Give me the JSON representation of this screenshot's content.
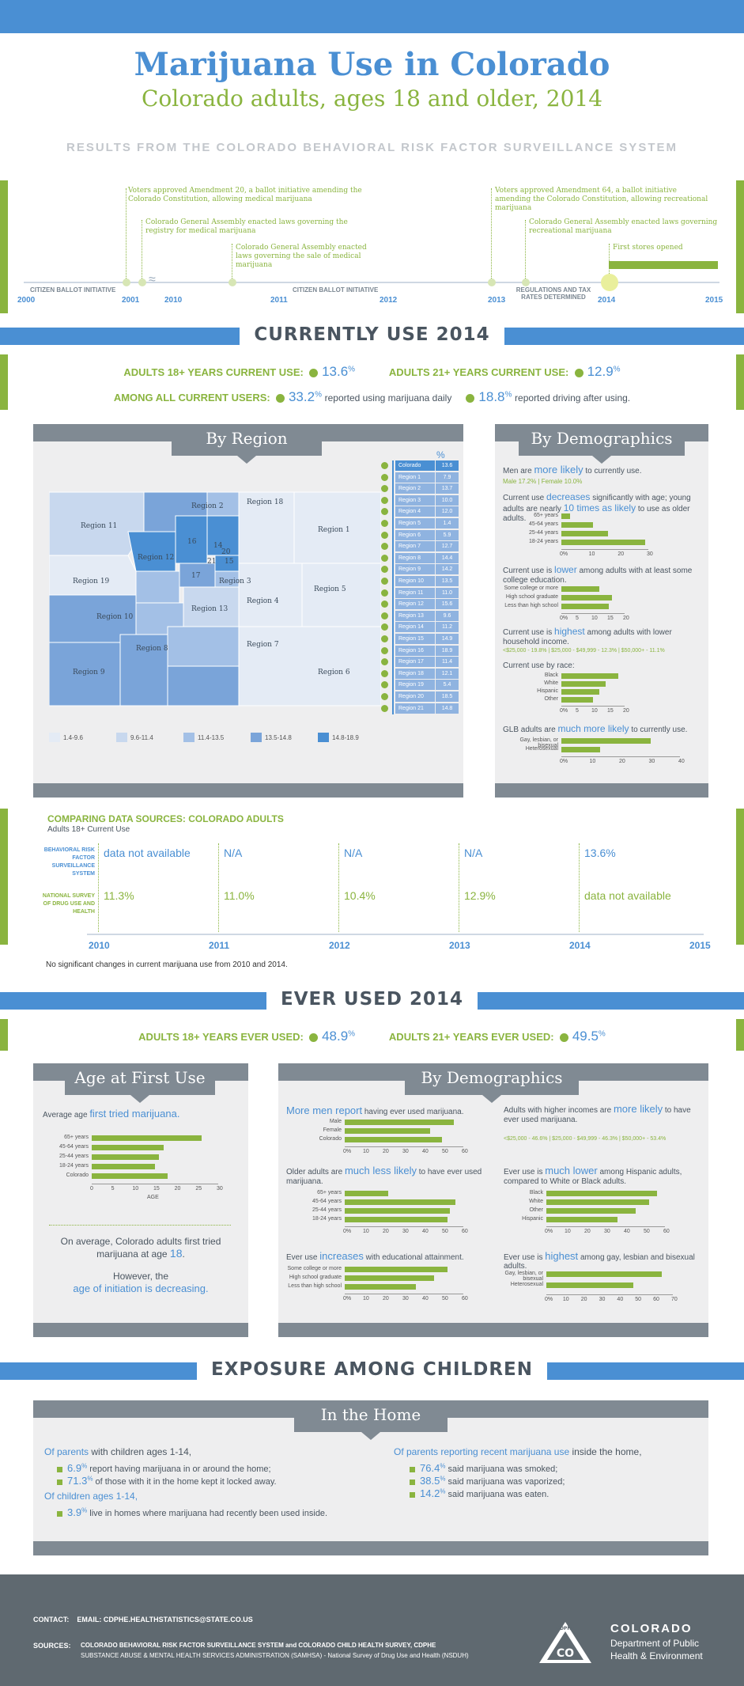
{
  "header": {
    "title": "Marijuana Use in Colorado",
    "subtitle": "Colorado adults, ages 18 and older, 2014",
    "tagline": "RESULTS FROM THE COLORADO BEHAVIORAL RISK FACTOR SURVEILLANCE SYSTEM"
  },
  "timeline": {
    "years": [
      "2000",
      "2001",
      "2010",
      "2011",
      "2012",
      "2013",
      "2014",
      "2015"
    ],
    "labels": [
      "CITIZEN BALLOT INITIATIVE",
      "CITIZEN BALLOT INITIATIVE",
      "REGULATIONS AND TAX RATES DETERMINED"
    ],
    "events": [
      "Voters approved Amendment 20, a ballot initiative amending the Colorado Constitution, allowing medical marijuana",
      "Colorado General Assembly enacted laws governing the registry for medical marijuana",
      "Colorado General Assembly enacted laws governing the sale of medical marijuana",
      "Voters approved Amendment 64, a ballot initiative amending the Colorado Constitution, allowing recreational marijuana",
      "Colorado General Assembly enacted laws governing recreational marijuana",
      "First stores opened"
    ]
  },
  "current": {
    "section_title": "CURRENTLY USE 2014",
    "adults18_label": "ADULTS 18+ YEARS CURRENT USE:",
    "adults18_value": "13.6",
    "adults21_label": "ADULTS 21+ YEARS CURRENT USE:",
    "adults21_value": "12.9",
    "all_users_label": "AMONG ALL CURRENT USERS:",
    "daily_value": "33.2",
    "daily_text": "reported using marijuana daily",
    "driving_value": "18.8",
    "driving_text": "reported driving after using.",
    "pct": "%"
  },
  "by_region": {
    "tab": "By Region",
    "table_header": "%",
    "rows": [
      {
        "name": "Colorado",
        "value": "13.6"
      },
      {
        "name": "Region 1",
        "value": "7.9"
      },
      {
        "name": "Region 2",
        "value": "13.7"
      },
      {
        "name": "Region 3",
        "value": "10.0"
      },
      {
        "name": "Region 4",
        "value": "12.0"
      },
      {
        "name": "Region 5",
        "value": "1.4"
      },
      {
        "name": "Region 6",
        "value": "5.9"
      },
      {
        "name": "Region 7",
        "value": "12.7"
      },
      {
        "name": "Region 8",
        "value": "14.4"
      },
      {
        "name": "Region 9",
        "value": "14.2"
      },
      {
        "name": "Region 10",
        "value": "13.5"
      },
      {
        "name": "Region 11",
        "value": "11.0"
      },
      {
        "name": "Region 12",
        "value": "15.6"
      },
      {
        "name": "Region 13",
        "value": "9.6"
      },
      {
        "name": "Region 14",
        "value": "11.2"
      },
      {
        "name": "Region 15",
        "value": "14.9"
      },
      {
        "name": "Region 16",
        "value": "18.9"
      },
      {
        "name": "Region 17",
        "value": "11.4"
      },
      {
        "name": "Region 18",
        "value": "12.1"
      },
      {
        "name": "Region 19",
        "value": "5.4"
      },
      {
        "name": "Region 20",
        "value": "18.5"
      },
      {
        "name": "Region 21",
        "value": "14.8"
      }
    ],
    "legend": [
      "1.4-9.6",
      "9.6-11.4",
      "11.4-13.5",
      "13.5-14.8",
      "14.8-18.9"
    ],
    "legend_colors": [
      "#e4ebf5",
      "#c8d8ee",
      "#a3c0e6",
      "#7aa4d9",
      "#4a8fd3"
    ],
    "map_labels": [
      "Region 1",
      "Region 2",
      "Region 3",
      "Region 4",
      "Region 5",
      "Region 6",
      "Region 7",
      "Region 8",
      "Region 9",
      "Region 10",
      "Region 11",
      "Region 12",
      "Region 13",
      "Region 14",
      "Region 15",
      "Region 16",
      "Region 17",
      "Region 18",
      "Region 19",
      "Region 20",
      "Region 21"
    ]
  },
  "by_demo_current": {
    "tab": "By Demographics",
    "men_pre": "Men are",
    "men_hl": "more likely",
    "men_post": "to currently use.",
    "men_vals": "Male 17.2%  |  Female 10.0%",
    "age_pre": "Current use",
    "age_hl": "decreases",
    "age_post": "significantly with age; young adults are nearly",
    "age_hl2": "10 times as likely",
    "age_post2": "to use as older adults.",
    "age_cats": [
      "65+ years",
      "45-64 years",
      "25-44 years",
      "18-24 years"
    ],
    "age_vals": [
      3,
      11,
      16,
      29
    ],
    "age_ticks": [
      "0%",
      "10",
      "20",
      "30"
    ],
    "edu_pre": "Current use is",
    "edu_hl": "lower",
    "edu_post": "among adults with at least some college education.",
    "edu_cats": [
      "Some college or more",
      "High school graduate",
      "Less than high school"
    ],
    "edu_vals": [
      12,
      16,
      15
    ],
    "edu_ticks": [
      "0%",
      "5",
      "10",
      "15",
      "20"
    ],
    "inc_pre": "Current use is",
    "inc_hl": "highest",
    "inc_post": "among adults with lower household income.",
    "inc_vals": "<$25,000 - 19.8%  |  $25,000 - $49,999 - 12.3%  |  $50,000+ - 11.1%",
    "race_title": "Current use by race:",
    "race_cats": [
      "Black",
      "White",
      "Hispanic",
      "Other"
    ],
    "race_vals": [
      18,
      14,
      12,
      10
    ],
    "race_ticks": [
      "0%",
      "5",
      "10",
      "15",
      "20"
    ],
    "glb_pre": "GLB adults are",
    "glb_hl": "much more likely",
    "glb_post": "to currently use.",
    "glb_cats": [
      "Gay, lesbian, or bisexual",
      "Heterosexual"
    ],
    "glb_vals": [
      30,
      13
    ],
    "glb_ticks": [
      "0%",
      "10",
      "20",
      "30",
      "40"
    ]
  },
  "comparing": {
    "title": "COMPARING DATA SOURCES: COLORADO ADULTS",
    "subtitle": "Adults 18+ Current Use",
    "row1_label": "BEHAVIORAL RISK FACTOR SURVEILLANCE SYSTEM",
    "row2_label": "NATIONAL SURVEY OF DRUG USE AND HEALTH",
    "row1": [
      "data not available",
      "N/A",
      "N/A",
      "N/A",
      "13.6%"
    ],
    "row2": [
      "11.3%",
      "11.0%",
      "10.4%",
      "12.9%",
      "data not available"
    ],
    "years": [
      "2010",
      "2011",
      "2012",
      "2013",
      "2014",
      "2015"
    ],
    "note": "No significant changes in current marijuana use from 2010 and 2014."
  },
  "ever": {
    "section_title": "EVER USED 2014",
    "adults18_label": "ADULTS 18+ YEARS EVER USED:",
    "adults18_value": "48.9",
    "adults21_label": "ADULTS 21+ YEARS EVER USED:",
    "adults21_value": "49.5",
    "pct": "%"
  },
  "age_first": {
    "tab": "Age at First Use",
    "intro_pre": "Average age",
    "intro_hl": "first tried marijuana.",
    "cats": [
      "65+ years",
      "45-64 years",
      "25-44 years",
      "18-24 years",
      "Colorado"
    ],
    "vals": [
      26,
      17,
      16,
      15,
      18
    ],
    "ticks": [
      "0",
      "5",
      "10",
      "15",
      "20",
      "25",
      "30"
    ],
    "axis": "AGE",
    "avg_text_pre": "On average, Colorado adults first tried marijuana at age",
    "avg_age": "18",
    "however": "However, the",
    "decreasing": "age of initiation is decreasing."
  },
  "demo_ever": {
    "tab": "By Demographics",
    "men_hl": "More men report",
    "men_post": "having ever used marijuana.",
    "sex_cats": [
      "Male",
      "Female",
      "Colorado"
    ],
    "sex_vals": [
      55,
      43,
      49
    ],
    "ticks60": [
      "0%",
      "10",
      "20",
      "30",
      "40",
      "50",
      "60"
    ],
    "older_pre": "Older adults are",
    "older_hl": "much less likely",
    "older_post": "to have ever used marijuana.",
    "age_cats": [
      "65+ years",
      "45-64 years",
      "25-44 years",
      "18-24 years"
    ],
    "age_vals": [
      22,
      56,
      53,
      52
    ],
    "edu_pre": "Ever use",
    "edu_hl": "increases",
    "edu_post": "with educational attainment.",
    "edu_cats": [
      "Some college or more",
      "High school graduate",
      "Less than high school"
    ],
    "edu_vals": [
      52,
      45,
      36
    ],
    "inc_pre": "Adults with higher incomes are",
    "inc_hl": "more likely",
    "inc_post": "to have ever used marijuana.",
    "inc_vals": "<$25,000 - 46.6%  |  $25,000 - $49,999 - 46.3%  |  $50,000+ - 53.4%",
    "his_pre": "Ever use is",
    "his_hl": "much lower",
    "his_post": "among Hispanic adults, compared to White or Black adults.",
    "race_cats": [
      "Black",
      "White",
      "Other",
      "Hispanic"
    ],
    "race_vals": [
      56,
      52,
      45,
      36
    ],
    "glb_pre": "Ever use is",
    "glb_hl": "highest",
    "glb_post": "among gay, lesbian and bisexual adults.",
    "glb_cats": [
      "Gay, lesbian, or bisexual",
      "Heterosexual"
    ],
    "glb_vals": [
      64,
      48
    ],
    "ticks70": [
      "0%",
      "10",
      "20",
      "30",
      "40",
      "50",
      "60",
      "70"
    ]
  },
  "exposure": {
    "section_title": "EXPOSURE AMONG CHILDREN",
    "tab": "In the Home",
    "parents_hl": "Of parents",
    "parents_post": "with children ages 1-14,",
    "p1_val": "6.9",
    "p1_text": "report having marijuana in or around the home;",
    "p2_val": "71.3",
    "p2_text": "of those with it in the home kept it locked away.",
    "children_hl": "Of children ages 1-14,",
    "c1_val": "3.9",
    "c1_text": "live in homes where marijuana had recently been used inside.",
    "recent_hl": "Of parents reporting recent marijuana use",
    "recent_post": "inside the home,",
    "r1_val": "76.4",
    "r1_text": "said marijuana was smoked;",
    "r2_val": "38.5",
    "r2_text": "said marijuana was vaporized;",
    "r3_val": "14.2",
    "r3_text": "said marijuana was eaten.",
    "pct": "%"
  },
  "footer": {
    "contact_label": "CONTACT:",
    "contact_text": "EMAIL: CDPHE.HEALTHSTATISTICS@STATE.CO.US",
    "sources_label": "SOURCES:",
    "sources_line1": "COLORADO BEHAVIORAL RISK FACTOR SURVEILLANCE SYSTEM and COLORADO CHILD HEALTH SURVEY, CDPHE",
    "sources_line2": "SUBSTANCE ABUSE & MENTAL HEALTH SERVICES ADMINISTRATION (SAMHSA) - National Survey of Drug Use and Health (NSDUH)",
    "logo_abbr": "CDPHE",
    "logo_co": "CO",
    "org1": "COLORADO",
    "org2": "Department of Public",
    "org3": "Health & Environment"
  }
}
